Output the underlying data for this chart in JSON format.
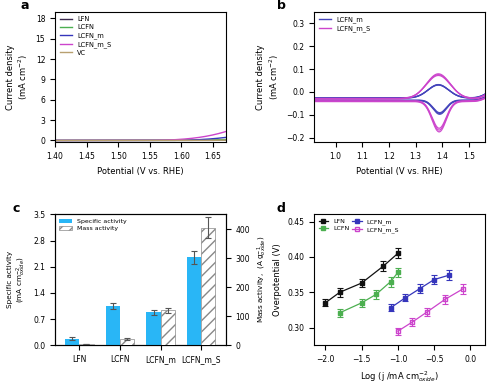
{
  "panel_a": {
    "xlabel": "Potential (V vs. RHE)",
    "xlim": [
      1.4,
      1.67
    ],
    "ylim": [
      -0.3,
      19
    ],
    "yticks": [
      0,
      3,
      6,
      9,
      12,
      15,
      18
    ],
    "xticks": [
      1.4,
      1.45,
      1.5,
      1.55,
      1.6,
      1.65
    ],
    "curves": {
      "LFN": {
        "color": "#3d2b4f",
        "onset": 1.615,
        "scale": 1800,
        "exp": 3.5
      },
      "LCFN": {
        "color": "#4caf50",
        "onset": 1.565,
        "scale": 120,
        "exp": 3.0
      },
      "LCFN_m": {
        "color": "#3535bb",
        "onset": 1.545,
        "scale": 350,
        "exp": 3.2
      },
      "LCFN_m_S": {
        "color": "#cc44cc",
        "onset": 1.51,
        "scale": 800,
        "exp": 3.5
      },
      "VC": {
        "color": "#b8a070",
        "onset": 1.59,
        "scale": 25,
        "exp": 2.5
      }
    }
  },
  "panel_b": {
    "xlabel": "Potential (V vs. RHE)",
    "xlim": [
      0.92,
      1.56
    ],
    "ylim": [
      -0.22,
      0.35
    ],
    "yticks": [
      -0.2,
      -0.1,
      0.0,
      0.1,
      0.2,
      0.3
    ],
    "xticks": [
      1.0,
      1.1,
      1.2,
      1.3,
      1.4,
      1.5
    ],
    "LCFN_m_color": "#4444bb",
    "LCFN_m_S_color": "#cc44cc"
  },
  "panel_c": {
    "categories": [
      "LFN",
      "LCFN",
      "LCFN_m",
      "LCFN_m_S"
    ],
    "specific_activity": [
      0.18,
      1.05,
      0.88,
      2.35
    ],
    "specific_activity_err": [
      0.03,
      0.08,
      0.06,
      0.18
    ],
    "mass_activity": [
      5,
      22,
      120,
      405
    ],
    "mass_activity_err": [
      1,
      3,
      8,
      35
    ],
    "bar_color_specific": "#29b6f6",
    "bar_color_mass": "#c0c0c0",
    "ylim_left": [
      0,
      3.5
    ],
    "ylim_right": [
      0,
      450
    ],
    "yticks_left": [
      0.0,
      0.7,
      1.4,
      2.1,
      2.8,
      3.5
    ],
    "yticks_right": [
      0,
      100,
      200,
      300,
      400
    ]
  },
  "panel_d": {
    "xlabel": "Log (j /mA cm$^{-2}_{oxide}$)",
    "ylabel": "Overpotential (V)",
    "xlim": [
      -2.15,
      0.2
    ],
    "ylim": [
      0.275,
      0.46
    ],
    "yticks": [
      0.3,
      0.35,
      0.4,
      0.45
    ],
    "xticks": [
      -2.0,
      -1.5,
      -1.0,
      -0.5,
      0.0
    ],
    "series": {
      "LFN": {
        "color": "#111111",
        "filled": true,
        "x": [
          -2.0,
          -1.8,
          -1.5,
          -1.2,
          -1.0
        ],
        "y": [
          0.335,
          0.35,
          0.363,
          0.387,
          0.405
        ],
        "yerr": [
          0.005,
          0.006,
          0.006,
          0.007,
          0.007
        ]
      },
      "LCFN": {
        "color": "#4caf50",
        "filled": true,
        "x": [
          -1.8,
          -1.5,
          -1.3,
          -1.1,
          -1.0
        ],
        "y": [
          0.321,
          0.335,
          0.347,
          0.365,
          0.378
        ],
        "yerr": [
          0.006,
          0.006,
          0.006,
          0.007,
          0.007
        ]
      },
      "LCFN_m": {
        "color": "#3535bb",
        "filled": true,
        "x": [
          -1.1,
          -0.9,
          -0.7,
          -0.5,
          -0.3
        ],
        "y": [
          0.328,
          0.342,
          0.355,
          0.368,
          0.374
        ],
        "yerr": [
          0.005,
          0.005,
          0.006,
          0.006,
          0.007
        ]
      },
      "LCFN_m_S": {
        "color": "#cc44cc",
        "filled": false,
        "x": [
          -1.0,
          -0.8,
          -0.6,
          -0.35,
          -0.1
        ],
        "y": [
          0.295,
          0.308,
          0.322,
          0.34,
          0.355
        ],
        "yerr": [
          0.005,
          0.005,
          0.006,
          0.006,
          0.007
        ]
      }
    }
  }
}
